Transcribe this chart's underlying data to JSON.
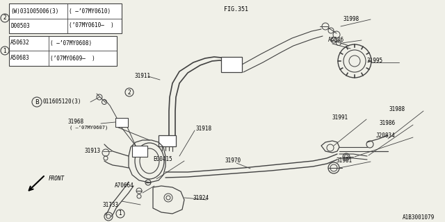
{
  "bg_color": "#f0f0e8",
  "line_color": "#404040",
  "text_color": "#000000",
  "fig_ref": "FIG.351",
  "part_id": "A1B3001079",
  "table1_rows": [
    [
      "(W)031005006(3)",
      "( -’07MY0610)"
    ],
    [
      "D00503",
      "(’07MY0610-  )"
    ]
  ],
  "table2_rows": [
    [
      "A50632",
      "( -’07MY0608)"
    ],
    [
      "A50683",
      "(’07MY0609-  )"
    ]
  ],
  "bolt_part": "011605120(3)"
}
